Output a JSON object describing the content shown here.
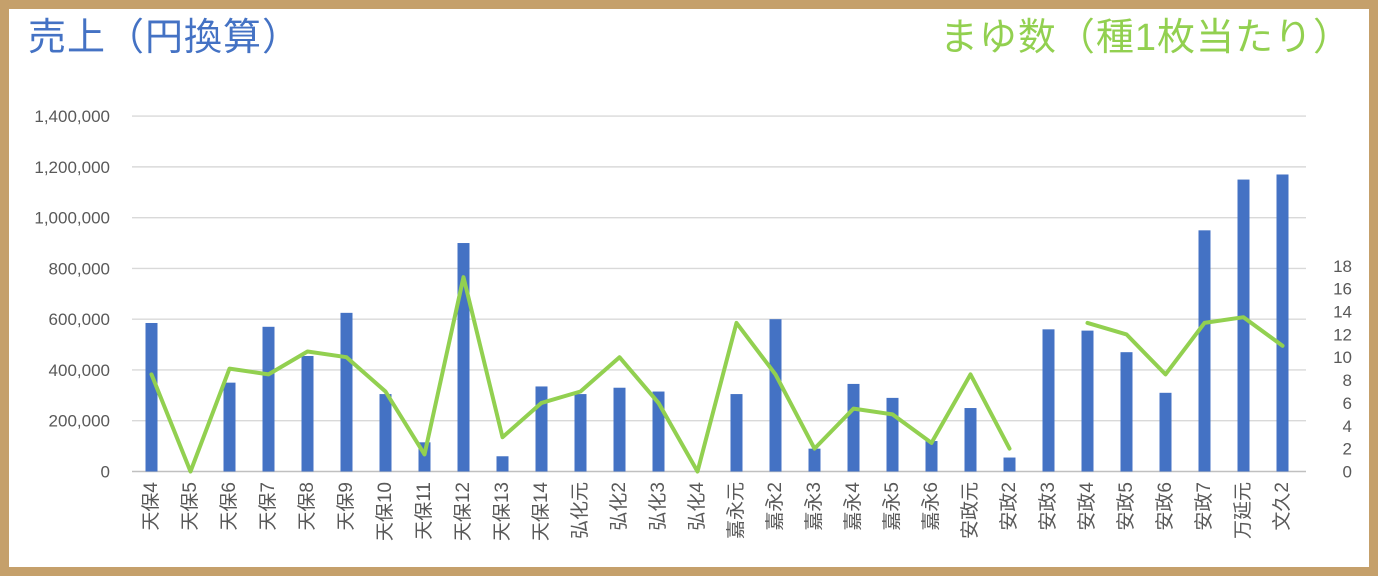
{
  "titles": {
    "left": "売上（円換算）",
    "right": "まゆ数（種1枚当たり）"
  },
  "colors": {
    "bar": "#4472C4",
    "line": "#92D050",
    "left_title": "#4472C4",
    "right_title": "#92D050",
    "axis_text": "#595959",
    "gridline": "#D9D9D9",
    "axis_line": "#C0C0C0",
    "frame_border": "#C5A06B",
    "background": "#FFFFFF"
  },
  "chart_data": {
    "type": "combo",
    "categories": [
      "天保4",
      "天保5",
      "天保6",
      "天保7",
      "天保8",
      "天保9",
      "天保10",
      "天保11",
      "天保12",
      "天保13",
      "天保14",
      "弘化元",
      "弘化2",
      "弘化3",
      "弘化4",
      "嘉永元",
      "嘉永2",
      "嘉永3",
      "嘉永4",
      "嘉永5",
      "嘉永6",
      "安政元",
      "安政2",
      "安政3",
      "安政4",
      "安政5",
      "安政6",
      "安政7",
      "万延元",
      "文久2"
    ],
    "series": [
      {
        "name": "売上（円換算）",
        "type": "bar",
        "axis": "left",
        "color": "#4472C4",
        "values": [
          585000,
          0,
          350000,
          570000,
          455000,
          625000,
          305000,
          115000,
          900000,
          60000,
          335000,
          305000,
          330000,
          315000,
          0,
          305000,
          600000,
          90000,
          345000,
          290000,
          120000,
          250000,
          55000,
          560000,
          555000,
          470000,
          310000,
          950000,
          1150000,
          1170000
        ]
      },
      {
        "name": "まゆ数（種1枚当たり）",
        "type": "line",
        "axis": "right",
        "color": "#92D050",
        "values": [
          8.5,
          0,
          9,
          8.5,
          10.5,
          10,
          7,
          1.5,
          17,
          3,
          6,
          7,
          10,
          6,
          0,
          13,
          8.5,
          2,
          5.5,
          5,
          2.5,
          8.5,
          2,
          null,
          13,
          12,
          8.5,
          13,
          13.5,
          11
        ]
      }
    ],
    "left_axis": {
      "min": 0,
      "max": 1400000,
      "step": 200000,
      "tick_labels": [
        "0",
        "200,000",
        "400,000",
        "600,000",
        "800,000",
        "1,000,000",
        "1,200,000",
        "1,400,000"
      ]
    },
    "right_axis": {
      "min": 0,
      "max": 18,
      "step": 2,
      "tick_labels": [
        "0",
        "2",
        "4",
        "6",
        "8",
        "10",
        "12",
        "14",
        "16",
        "18"
      ]
    },
    "grid": true,
    "legend_position": "none",
    "x_tick_rotation": -90
  }
}
